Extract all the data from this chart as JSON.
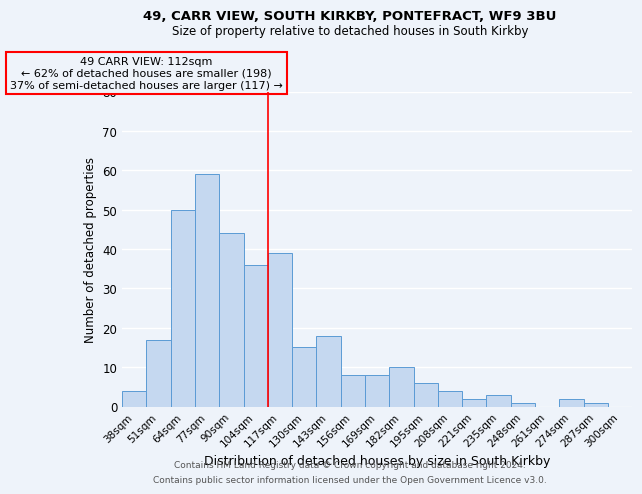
{
  "title1": "49, CARR VIEW, SOUTH KIRKBY, PONTEFRACT, WF9 3BU",
  "title2": "Size of property relative to detached houses in South Kirkby",
  "xlabel": "Distribution of detached houses by size in South Kirkby",
  "ylabel": "Number of detached properties",
  "bar_color": "#c5d8f0",
  "bar_edgecolor": "#5b9bd5",
  "background_color": "#eef3fa",
  "categories": [
    "38sqm",
    "51sqm",
    "64sqm",
    "77sqm",
    "90sqm",
    "104sqm",
    "117sqm",
    "130sqm",
    "143sqm",
    "156sqm",
    "169sqm",
    "182sqm",
    "195sqm",
    "208sqm",
    "221sqm",
    "235sqm",
    "248sqm",
    "261sqm",
    "274sqm",
    "287sqm",
    "300sqm"
  ],
  "values": [
    4,
    17,
    50,
    59,
    44,
    36,
    39,
    15,
    18,
    8,
    8,
    10,
    6,
    4,
    2,
    3,
    1,
    0,
    2,
    1,
    0
  ],
  "ylim": [
    0,
    80
  ],
  "yticks": [
    0,
    10,
    20,
    30,
    40,
    50,
    60,
    70,
    80
  ],
  "vline_x_index": 6,
  "annotation_line1": "49 CARR VIEW: 112sqm",
  "annotation_line2": "← 62% of detached houses are smaller (198)",
  "annotation_line3": "37% of semi-detached houses are larger (117) →",
  "footer1": "Contains HM Land Registry data © Crown copyright and database right 2024.",
  "footer2": "Contains public sector information licensed under the Open Government Licence v3.0."
}
